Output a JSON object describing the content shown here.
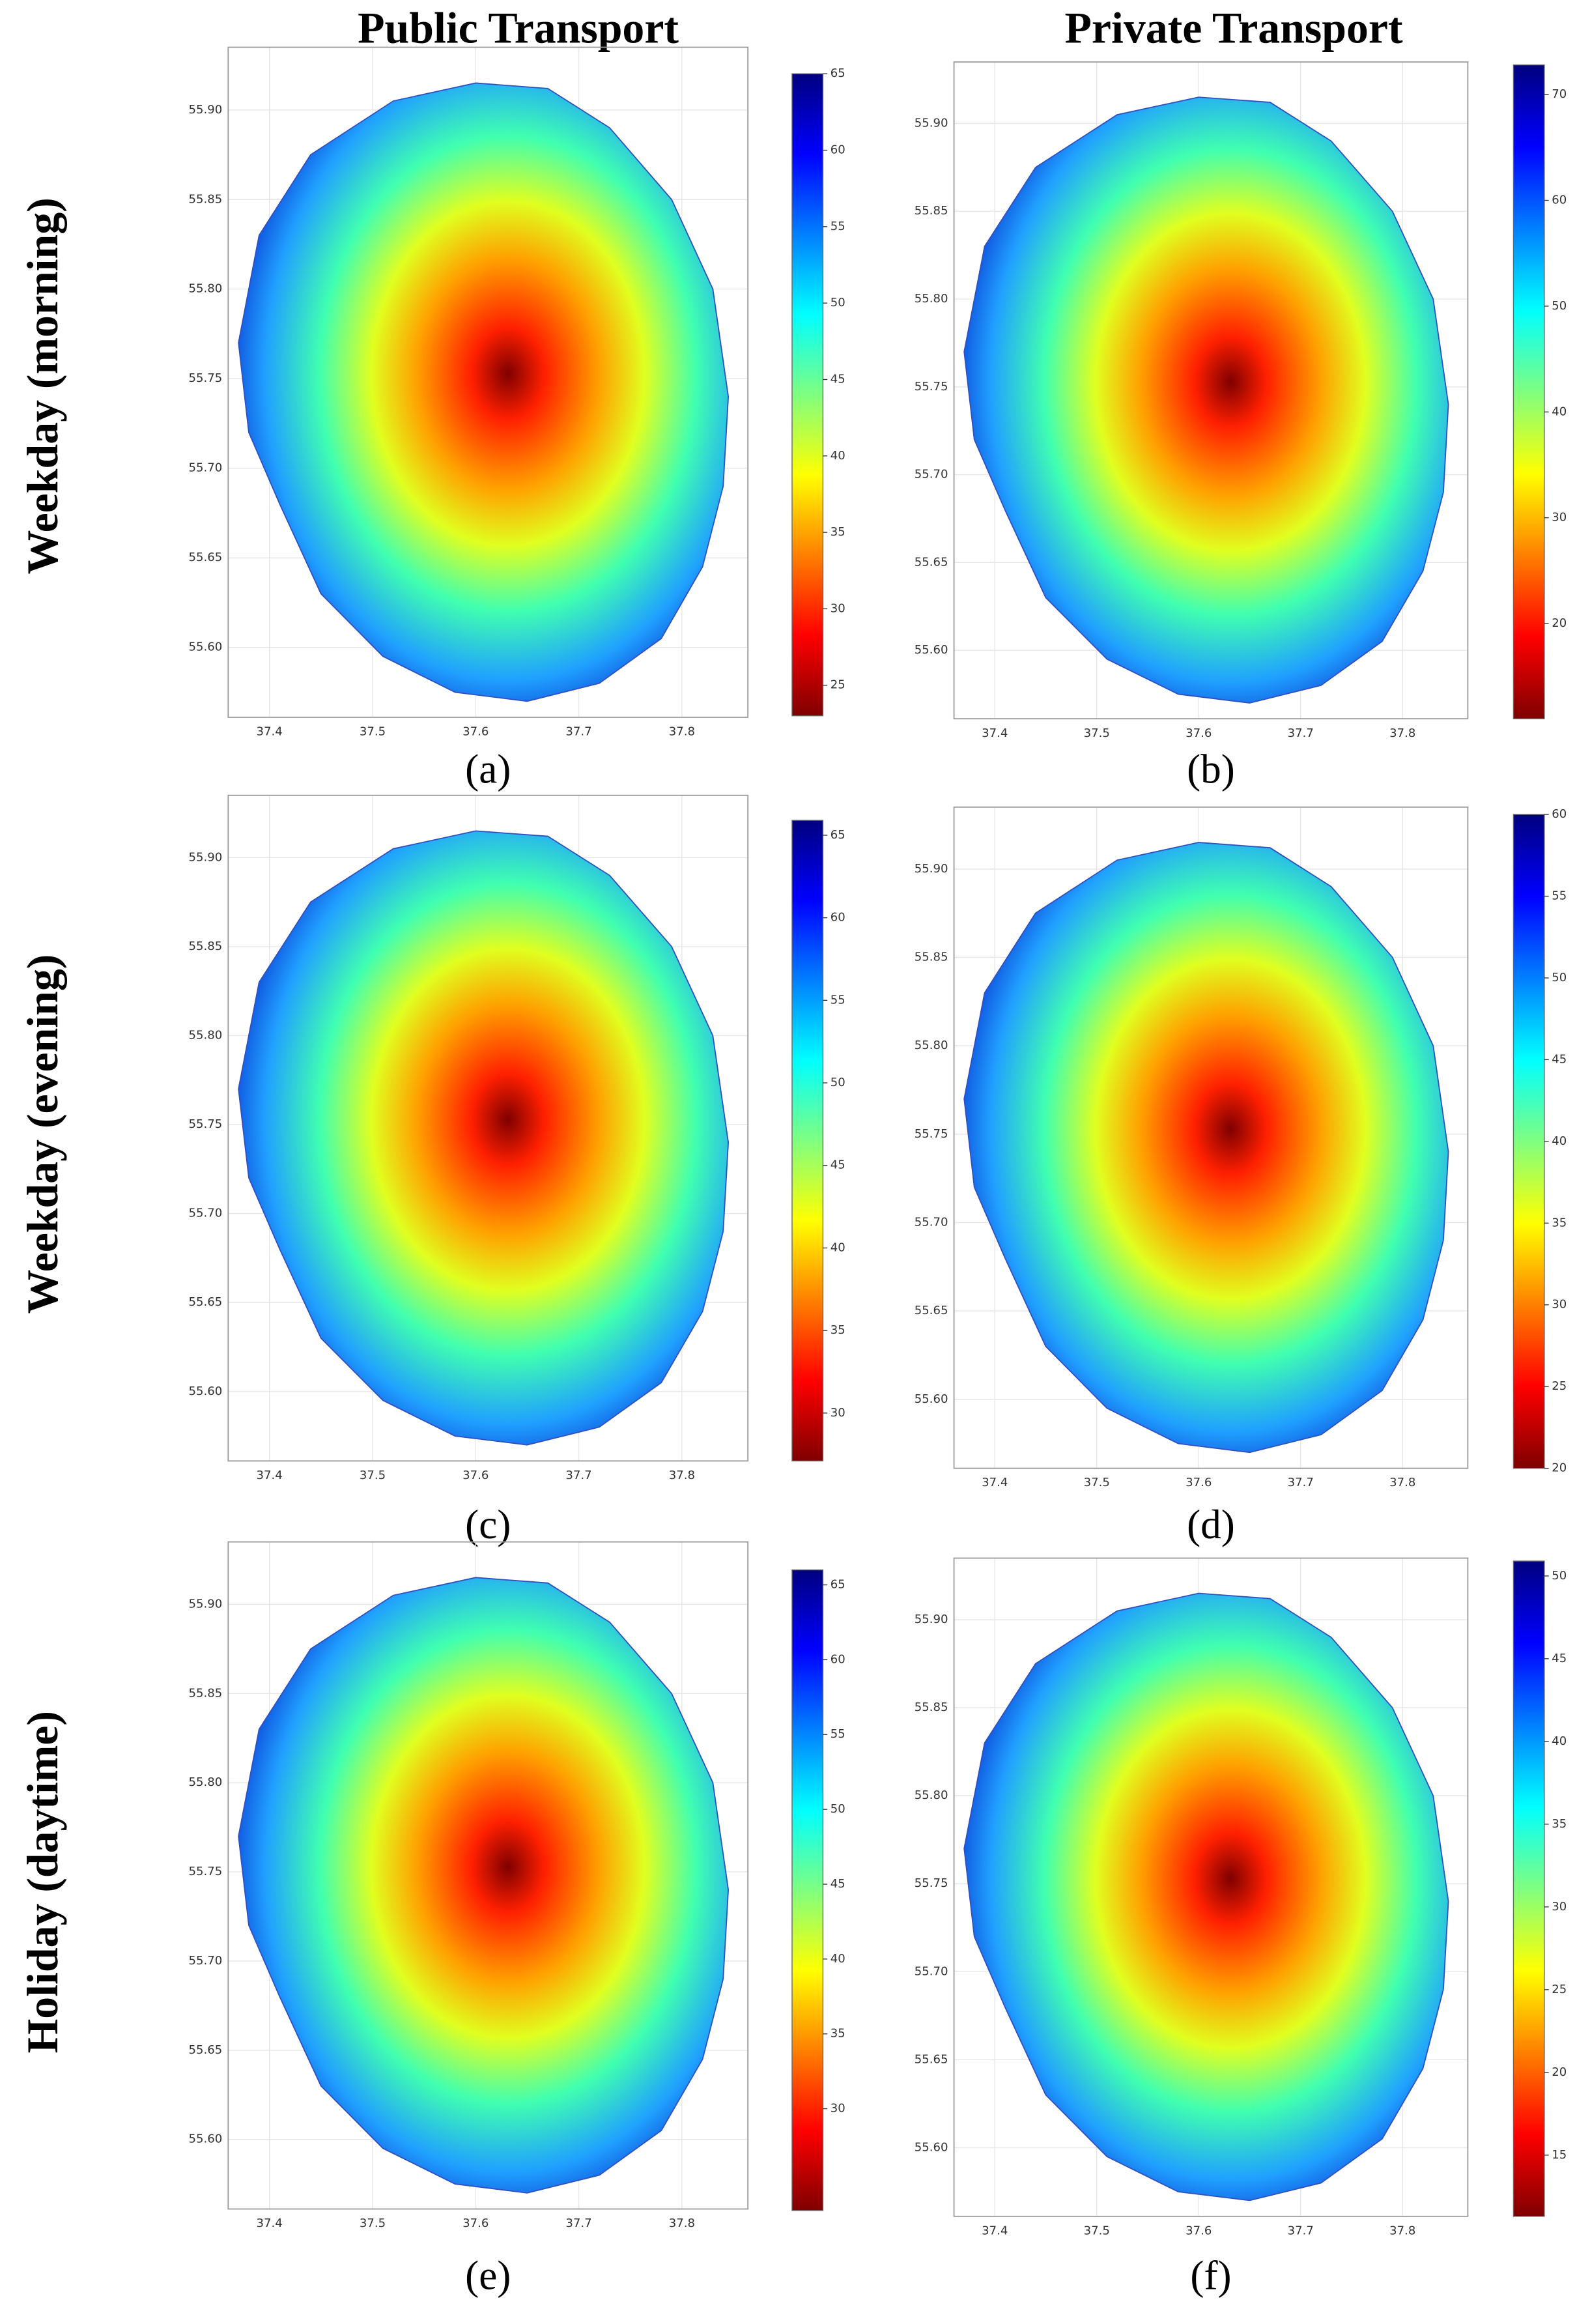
{
  "column_titles": [
    "Public Transport",
    "Private Transport"
  ],
  "row_labels": [
    "Weekday (morning)",
    "Weekday (evening)",
    "Holiday (daytime)"
  ],
  "chart_data": [
    {
      "type": "choropleth",
      "label": "(a)",
      "colormap": "jet_r",
      "xlim": [
        37.36,
        37.864
      ],
      "ylim": [
        55.561,
        55.935
      ],
      "xticks": [
        37.4,
        37.5,
        37.6,
        37.7,
        37.8
      ],
      "yticks": [
        {
          "value": 55.6,
          "label": "55.60"
        },
        {
          "value": 55.65,
          "label": "55.65"
        },
        {
          "value": 55.7,
          "label": "55.70"
        },
        {
          "value": 55.75,
          "label": "55.75"
        },
        {
          "value": 55.8,
          "label": "55.80"
        },
        {
          "value": 55.85,
          "label": "55.85"
        },
        {
          "value": 55.9,
          "label": "55.90"
        }
      ],
      "colorbar": {
        "lim": [
          23,
          65
        ],
        "ticks": [
          25,
          30,
          35,
          40,
          45,
          50,
          55,
          60,
          65
        ]
      }
    },
    {
      "type": "choropleth",
      "label": "(b)",
      "colormap": "jet_r",
      "xlim": [
        37.36,
        37.864
      ],
      "ylim": [
        55.561,
        55.935
      ],
      "xticks": [
        37.4,
        37.5,
        37.6,
        37.7,
        37.8
      ],
      "yticks": [
        {
          "value": 55.6,
          "label": "55.60"
        },
        {
          "value": 55.65,
          "label": "55.65"
        },
        {
          "value": 55.7,
          "label": "55.70"
        },
        {
          "value": 55.75,
          "label": "55.75"
        },
        {
          "value": 55.8,
          "label": "55.80"
        },
        {
          "value": 55.85,
          "label": "55.85"
        },
        {
          "value": 55.9,
          "label": "55.90"
        }
      ],
      "colorbar": {
        "lim": [
          11,
          72.8
        ],
        "ticks": [
          20,
          30,
          40,
          50,
          60,
          70
        ]
      }
    },
    {
      "type": "choropleth",
      "label": "(c)",
      "colormap": "jet_r",
      "xlim": [
        37.36,
        37.864
      ],
      "ylim": [
        55.561,
        55.935
      ],
      "xticks": [
        37.4,
        37.5,
        37.6,
        37.7,
        37.8
      ],
      "yticks": [
        {
          "value": 55.6,
          "label": "55.60"
        },
        {
          "value": 55.65,
          "label": "55.65"
        },
        {
          "value": 55.7,
          "label": "55.70"
        },
        {
          "value": 55.75,
          "label": "55.75"
        },
        {
          "value": 55.8,
          "label": "55.80"
        },
        {
          "value": 55.85,
          "label": "55.85"
        },
        {
          "value": 55.9,
          "label": "55.90"
        }
      ],
      "colorbar": {
        "lim": [
          27.1,
          65.9
        ],
        "ticks": [
          30,
          35,
          40,
          45,
          50,
          55,
          60,
          65
        ]
      }
    },
    {
      "type": "choropleth",
      "label": "(d)",
      "colormap": "jet_r",
      "xlim": [
        37.36,
        37.864
      ],
      "ylim": [
        55.561,
        55.935
      ],
      "xticks": [
        37.4,
        37.5,
        37.6,
        37.7,
        37.8
      ],
      "yticks": [
        {
          "value": 55.6,
          "label": "55.60"
        },
        {
          "value": 55.65,
          "label": "55.65"
        },
        {
          "value": 55.7,
          "label": "55.70"
        },
        {
          "value": 55.75,
          "label": "55.75"
        },
        {
          "value": 55.8,
          "label": "55.80"
        },
        {
          "value": 55.85,
          "label": "55.85"
        },
        {
          "value": 55.9,
          "label": "55.90"
        }
      ],
      "colorbar": {
        "lim": [
          20,
          60
        ],
        "ticks": [
          20,
          25,
          30,
          35,
          40,
          45,
          50,
          55,
          60
        ]
      }
    },
    {
      "type": "choropleth",
      "label": "(e)",
      "colormap": "jet_r",
      "xlim": [
        37.36,
        37.864
      ],
      "ylim": [
        55.561,
        55.935
      ],
      "xticks": [
        37.4,
        37.5,
        37.6,
        37.7,
        37.8
      ],
      "yticks": [
        {
          "value": 55.6,
          "label": "55.60"
        },
        {
          "value": 55.65,
          "label": "55.65"
        },
        {
          "value": 55.7,
          "label": "55.70"
        },
        {
          "value": 55.75,
          "label": "55.75"
        },
        {
          "value": 55.8,
          "label": "55.80"
        },
        {
          "value": 55.85,
          "label": "55.85"
        },
        {
          "value": 55.9,
          "label": "55.90"
        }
      ],
      "colorbar": {
        "lim": [
          23.2,
          66
        ],
        "ticks": [
          30,
          35,
          40,
          45,
          50,
          55,
          60,
          65
        ]
      }
    },
    {
      "type": "choropleth",
      "label": "(f)",
      "colormap": "jet_r",
      "xlim": [
        37.36,
        37.864
      ],
      "ylim": [
        55.561,
        55.935
      ],
      "xticks": [
        37.4,
        37.5,
        37.6,
        37.7,
        37.8
      ],
      "yticks": [
        {
          "value": 55.6,
          "label": "55.60"
        },
        {
          "value": 55.65,
          "label": "55.65"
        },
        {
          "value": 55.7,
          "label": "55.70"
        },
        {
          "value": 55.75,
          "label": "55.75"
        },
        {
          "value": 55.8,
          "label": "55.80"
        },
        {
          "value": 55.85,
          "label": "55.85"
        },
        {
          "value": 55.9,
          "label": "55.90"
        }
      ],
      "colorbar": {
        "lim": [
          11.3,
          50.9
        ],
        "ticks": [
          15,
          20,
          25,
          30,
          35,
          40,
          45,
          50
        ]
      }
    }
  ]
}
